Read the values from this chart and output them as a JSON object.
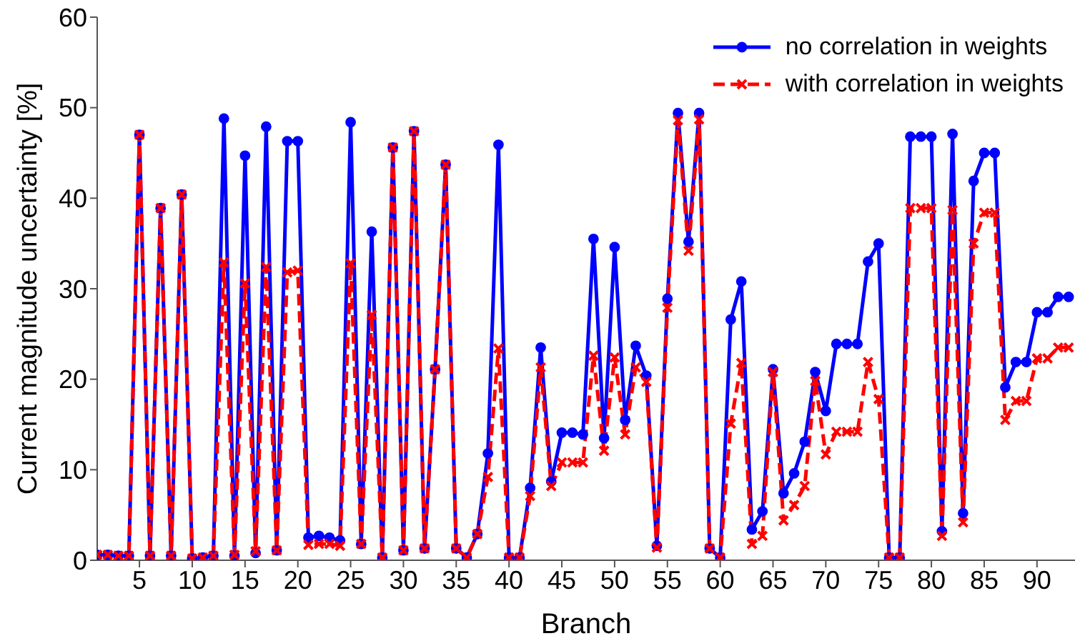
{
  "chart_data": {
    "type": "line",
    "xlabel": "Branch",
    "ylabel": "Current magnitude uncertainty [%]",
    "x": [
      1,
      2,
      3,
      4,
      5,
      6,
      7,
      8,
      9,
      10,
      11,
      12,
      13,
      14,
      15,
      16,
      17,
      18,
      19,
      20,
      21,
      22,
      23,
      24,
      25,
      26,
      27,
      28,
      29,
      30,
      31,
      32,
      33,
      34,
      35,
      36,
      37,
      38,
      39,
      40,
      41,
      42,
      43,
      44,
      45,
      46,
      47,
      48,
      49,
      50,
      51,
      52,
      53,
      54,
      55,
      56,
      57,
      58,
      59,
      60,
      61,
      62,
      63,
      64,
      65,
      66,
      67,
      68,
      69,
      70,
      71,
      72,
      73,
      74,
      75,
      76,
      77,
      78,
      79,
      80,
      81,
      82,
      83,
      84,
      85,
      86,
      87,
      88,
      89,
      90,
      91,
      92,
      93
    ],
    "series": [
      {
        "name": "no correlation in weights",
        "color": "#0000ff",
        "marker": "circle",
        "line_style": "solid",
        "values": [
          0.6,
          0.6,
          0.5,
          0.5,
          47.0,
          0.5,
          38.9,
          0.5,
          40.4,
          0.2,
          0.3,
          0.5,
          48.8,
          0.5,
          44.7,
          0.8,
          47.9,
          1.1,
          46.3,
          46.3,
          2.5,
          2.7,
          2.5,
          2.2,
          48.4,
          1.8,
          36.3,
          0.3,
          45.6,
          1.1,
          47.4,
          1.3,
          21.1,
          43.7,
          1.3,
          0.3,
          2.9,
          11.8,
          45.9,
          0.3,
          0.3,
          8.0,
          23.5,
          8.7,
          14.1,
          14.1,
          13.9,
          35.5,
          13.5,
          34.6,
          15.5,
          23.7,
          20.4,
          1.6,
          28.9,
          49.4,
          35.2,
          49.4,
          1.3,
          0.3,
          26.6,
          30.8,
          3.4,
          5.4,
          21.1,
          7.4,
          9.6,
          13.1,
          20.8,
          16.5,
          23.9,
          23.9,
          23.9,
          33.0,
          35.0,
          0.3,
          0.3,
          46.8,
          46.8,
          46.8,
          3.2,
          47.1,
          5.2,
          41.9,
          45.0,
          45.0,
          19.1,
          21.9,
          21.9,
          27.4,
          27.4,
          29.1,
          29.1
        ]
      },
      {
        "name": "with correlation in weights",
        "color": "#ff0000",
        "marker": "cross",
        "line_style": "dashed",
        "values": [
          0.6,
          0.6,
          0.5,
          0.5,
          47.0,
          0.5,
          38.9,
          0.5,
          40.4,
          0.2,
          0.3,
          0.5,
          32.9,
          0.6,
          30.6,
          1.0,
          32.4,
          1.1,
          31.8,
          32.0,
          1.7,
          1.8,
          1.8,
          1.6,
          32.8,
          1.8,
          27.1,
          0.3,
          45.6,
          1.1,
          47.4,
          1.3,
          21.1,
          43.7,
          1.3,
          0.3,
          2.9,
          9.2,
          23.4,
          0.3,
          0.3,
          7.1,
          21.3,
          8.2,
          10.8,
          10.8,
          10.8,
          22.6,
          12.1,
          22.4,
          13.9,
          21.3,
          19.7,
          1.4,
          27.9,
          48.6,
          34.2,
          48.7,
          1.3,
          0.3,
          15.1,
          21.8,
          1.8,
          2.7,
          20.8,
          4.4,
          6.1,
          8.2,
          19.8,
          11.7,
          14.2,
          14.2,
          14.2,
          21.9,
          17.8,
          0.3,
          0.3,
          38.9,
          38.9,
          38.9,
          2.7,
          38.7,
          4.2,
          35.0,
          38.4,
          38.4,
          15.5,
          17.6,
          17.6,
          22.3,
          22.3,
          23.5,
          23.5
        ]
      }
    ],
    "xlim": [
      1,
      93.6
    ],
    "xticks": [
      5,
      10,
      15,
      20,
      25,
      30,
      35,
      40,
      45,
      50,
      55,
      60,
      65,
      70,
      75,
      80,
      85,
      90
    ],
    "ylim": [
      0,
      60
    ],
    "yticks": [
      0,
      10,
      20,
      30,
      40,
      50,
      60
    ],
    "grid": false,
    "legend": "top right"
  }
}
